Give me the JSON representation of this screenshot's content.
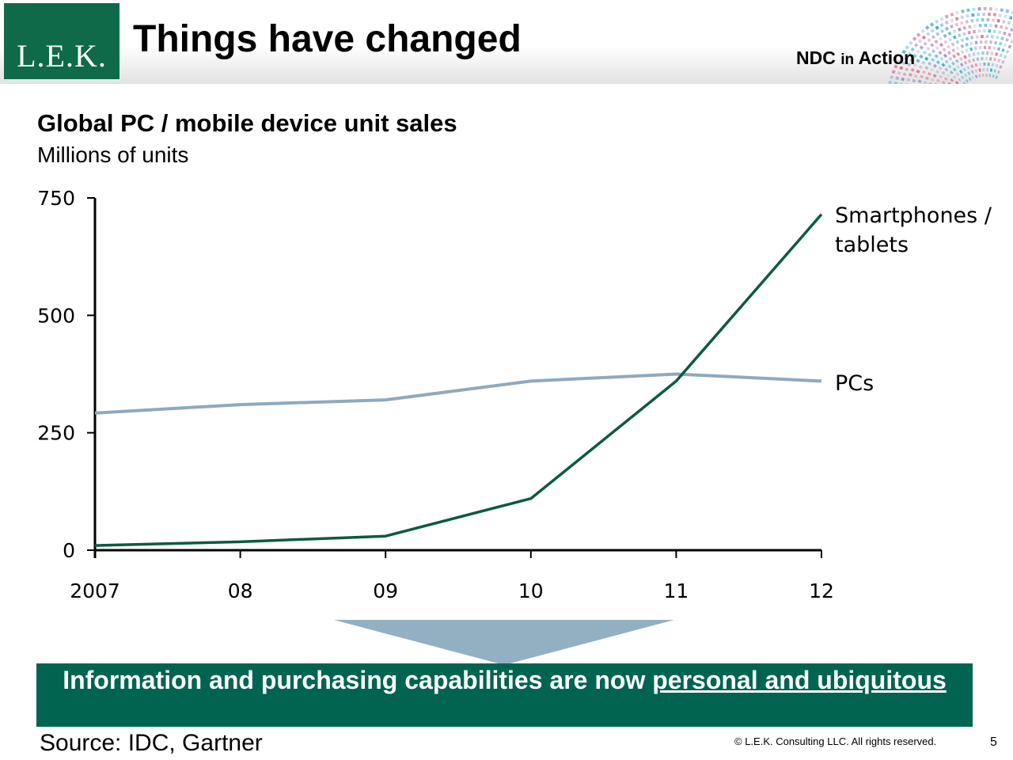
{
  "header": {
    "logo": "L.E.K.",
    "title": "Things have changed",
    "brand_prefix": "NDC",
    "brand_middle": "in",
    "brand_suffix": "Action"
  },
  "chart_data": {
    "type": "line",
    "title": "Global PC / mobile device unit sales",
    "subtitle": "Millions of units",
    "categories": [
      "2007",
      "08",
      "09",
      "10",
      "11",
      "12"
    ],
    "y_ticks": [
      "0",
      "250",
      "500",
      "750"
    ],
    "ylim": [
      0,
      750
    ],
    "grid": false,
    "legend": "direct labels at line ends",
    "series": [
      {
        "name": "Smartphones / tablets",
        "name_line1": "Smartphones /",
        "name_line2": "tablets",
        "values": [
          10,
          18,
          30,
          110,
          360,
          715
        ],
        "color": "#0b5a44"
      },
      {
        "name": "PCs",
        "values": [
          292,
          310,
          320,
          360,
          375,
          360
        ],
        "color": "#8fa9bd"
      }
    ]
  },
  "banner": {
    "text_plain": "Information and purchasing capabilities are now ",
    "text_underlined": "personal and ubiquitous",
    "bg_color": "#006450"
  },
  "footer": {
    "source": "Source: IDC, Gartner",
    "copyright": "© L.E.K. Consulting LLC. All rights reserved.",
    "page": "5"
  }
}
